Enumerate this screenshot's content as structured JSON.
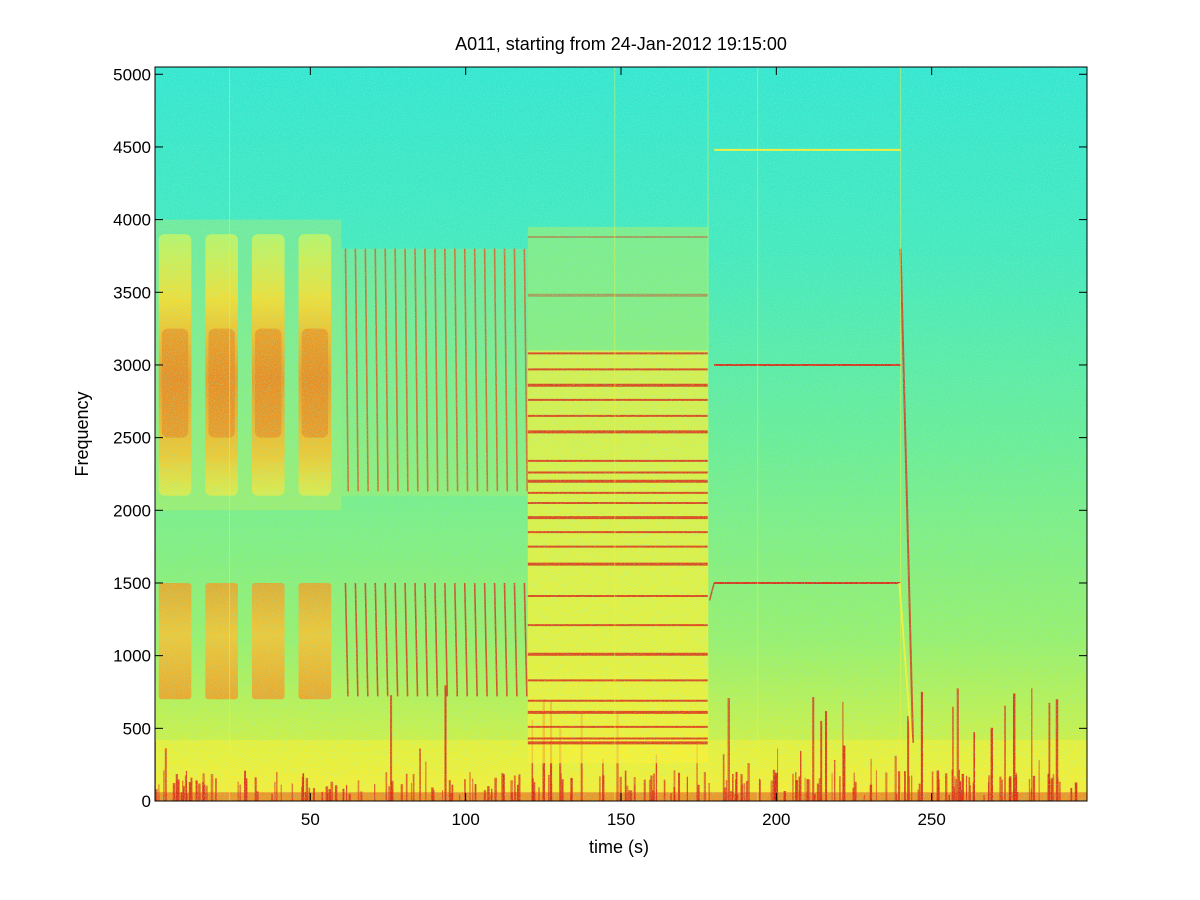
{
  "chart_data": {
    "type": "heatmap",
    "subtype": "spectrogram",
    "title": "A011, starting from 24-Jan-2012 19:15:00",
    "xlabel": "time (s)",
    "ylabel": "Frequency",
    "xlim": [
      0,
      300
    ],
    "ylim": [
      0,
      5050
    ],
    "xticks": [
      50,
      100,
      150,
      200,
      250
    ],
    "yticks": [
      0,
      500,
      1000,
      1500,
      2000,
      2500,
      3000,
      3500,
      4000,
      4500,
      5000
    ],
    "grid": false,
    "colormap": "jet",
    "colors": {
      "background_level": "#3cebc8",
      "mid_level": "#c8f04b",
      "high_level": "#fff030",
      "peak_level": "#e02a14"
    },
    "segments": [
      {
        "name": "broadband bursts",
        "t_start": 0,
        "t_end": 60,
        "bands_hz": [
          [
            700,
            1500
          ],
          [
            2100,
            3900
          ]
        ],
        "burst_count": 4
      },
      {
        "name": "periodic sweeps",
        "t_start": 60,
        "t_end": 120,
        "bands_hz": [
          [
            720,
            1500
          ],
          [
            2130,
            3800
          ]
        ]
      },
      {
        "name": "multi-tone lines",
        "t_start": 120,
        "t_end": 178,
        "line_freqs_hz": [
          400,
          430,
          510,
          610,
          690,
          830,
          1010,
          1210,
          1410,
          1630,
          1750,
          1850,
          1950,
          2050,
          2120,
          2200,
          2260,
          2340,
          2540,
          2650,
          2760,
          2860,
          2970,
          3080,
          3480,
          3880
        ]
      },
      {
        "name": "steady tones",
        "t_start": 180,
        "t_end": 240,
        "line_freqs_hz": [
          1500,
          3000,
          4480
        ]
      },
      {
        "name": "downward sweep",
        "t_start": 240,
        "t_end": 244,
        "freq_range_hz": [
          400,
          3800
        ]
      }
    ]
  }
}
